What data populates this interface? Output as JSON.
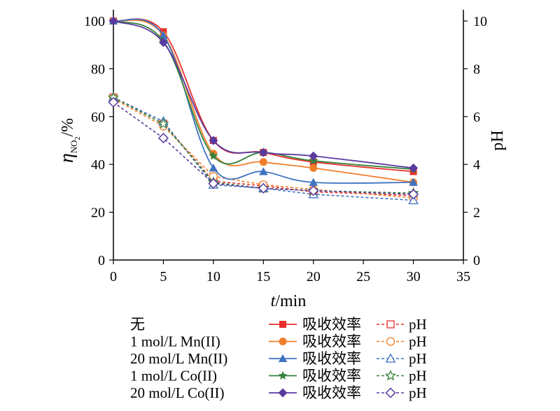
{
  "chart_data": {
    "type": "line",
    "xlabel_var": "t",
    "xlabel_unit": "/min",
    "ylabel_left_var": "η",
    "ylabel_left_sub": "NO",
    "ylabel_left_subsub": "2",
    "ylabel_left_unit": "/%",
    "ylabel_right": "pH",
    "xlim": [
      0,
      35
    ],
    "ylim_left": [
      0,
      100
    ],
    "ylim_right": [
      0,
      10
    ],
    "xticks": [
      0,
      5,
      10,
      15,
      20,
      25,
      30,
      35
    ],
    "yticks_left": [
      0,
      20,
      40,
      60,
      80,
      100
    ],
    "yticks_right": [
      0,
      2,
      4,
      6,
      8,
      10
    ],
    "grid": false,
    "legend_placement": "bottom",
    "legend_eff_label": "吸收效率",
    "legend_ph_label": "pH",
    "series": [
      {
        "name": "无",
        "color": "#e8312c",
        "marker": "square",
        "x": [
          0,
          5,
          10,
          15,
          20,
          30
        ],
        "efficiency": [
          100,
          95.5,
          50,
          45,
          41,
          37
        ],
        "ph": [
          6.8,
          5.7,
          3.3,
          3.1,
          2.85,
          2.7
        ]
      },
      {
        "name": "1 mol/L  Mn(II)",
        "color": "#f07d2a",
        "marker": "circle",
        "x": [
          0,
          5,
          10,
          15,
          20,
          30
        ],
        "efficiency": [
          100,
          94,
          44.5,
          41,
          38.5,
          32.5
        ],
        "ph": [
          6.75,
          5.6,
          3.5,
          3.15,
          2.95,
          2.6
        ]
      },
      {
        "name": "20 mol/L Mn(II)",
        "color": "#3f72c1",
        "marker": "triangle",
        "x": [
          0,
          5,
          10,
          15,
          20,
          30
        ],
        "efficiency": [
          100,
          94,
          38.5,
          37,
          32.5,
          32.5
        ],
        "ph": [
          6.8,
          5.8,
          3.15,
          3.0,
          2.75,
          2.5
        ]
      },
      {
        "name": "1 mol/L  Co(II)",
        "color": "#35813a",
        "marker": "star",
        "x": [
          0,
          5,
          10,
          15,
          20,
          30
        ],
        "efficiency": [
          100,
          91.5,
          43.5,
          45,
          41.5,
          38
        ],
        "ph": [
          6.8,
          5.7,
          3.25,
          3.0,
          2.9,
          2.8
        ]
      },
      {
        "name": "20 mol/L  Co(II)",
        "color": "#5a3aa0",
        "marker": "diamond",
        "x": [
          0,
          5,
          10,
          15,
          20,
          30
        ],
        "efficiency": [
          100,
          91,
          50,
          45,
          43.5,
          38.5
        ],
        "ph": [
          6.6,
          5.1,
          3.2,
          3.0,
          2.9,
          2.75
        ]
      }
    ]
  }
}
